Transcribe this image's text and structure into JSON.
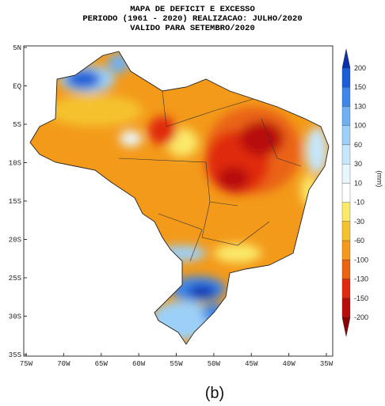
{
  "title_lines": [
    "MAPA DE DEFICIT E EXCESSO",
    "PERIODO (1961 - 2020) REALIZACAO: JULHO/2020",
    "VALIDO PARA SETEMBRO/2020"
  ],
  "latitude_labels": [
    "5N",
    "EQ",
    "5S",
    "10S",
    "15S",
    "20S",
    "25S",
    "30S",
    "35S"
  ],
  "longitude_labels": [
    "75W",
    "70W",
    "65W",
    "60W",
    "55W",
    "50W",
    "45W",
    "40W",
    "35W"
  ],
  "colorbar": {
    "unit": "(mm)",
    "ticks": [
      200,
      150,
      130,
      100,
      60,
      30,
      10,
      -10,
      -30,
      -60,
      -100,
      -130,
      -150,
      -200
    ],
    "colors": [
      "#0a2fb0",
      "#1b5ed6",
      "#3e86ea",
      "#6eb0f2",
      "#9cd0f8",
      "#c6e6fb",
      "#eaf6fd",
      "#ffffff",
      "#fbe96a",
      "#f5c22d",
      "#f39a1a",
      "#ea6413",
      "#e02a10",
      "#b80d0d",
      "#8c0000"
    ]
  },
  "caption": "(b)"
}
